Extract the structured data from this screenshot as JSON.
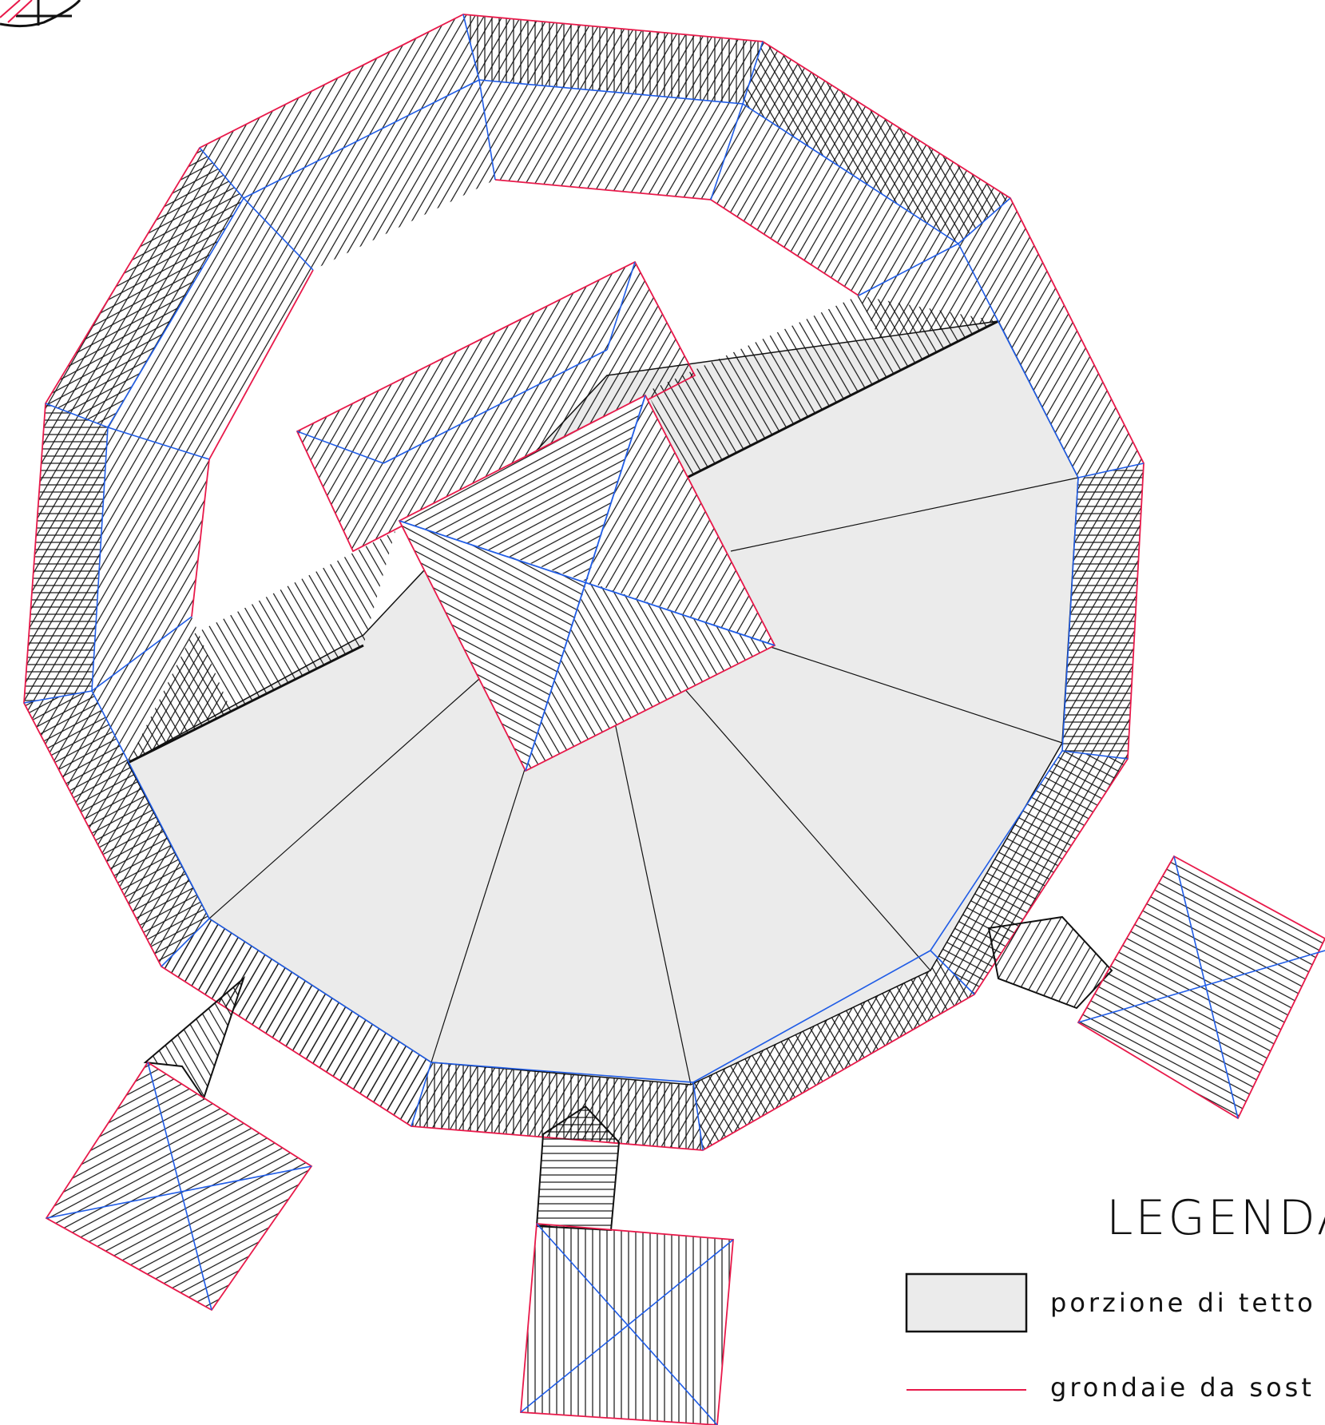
{
  "legend": {
    "title": "LEGENDA",
    "items": [
      {
        "label": "porzione di tetto",
        "swatch": "filled-box",
        "fill": "#ebebeb",
        "stroke": "#111111"
      },
      {
        "label": "grondaie da sost",
        "swatch": "line",
        "stroke": "#e8194a"
      },
      {
        "label": "",
        "swatch": "line",
        "stroke": "#1f5ce6"
      }
    ]
  },
  "colors": {
    "eave_line": "#e8194a",
    "ridge_line": "#1f5ce6",
    "outline": "#111111",
    "flat_roof_fill": "#ebebeb",
    "hatch": "#111111"
  },
  "icons": [
    "compass-rose-icon"
  ]
}
